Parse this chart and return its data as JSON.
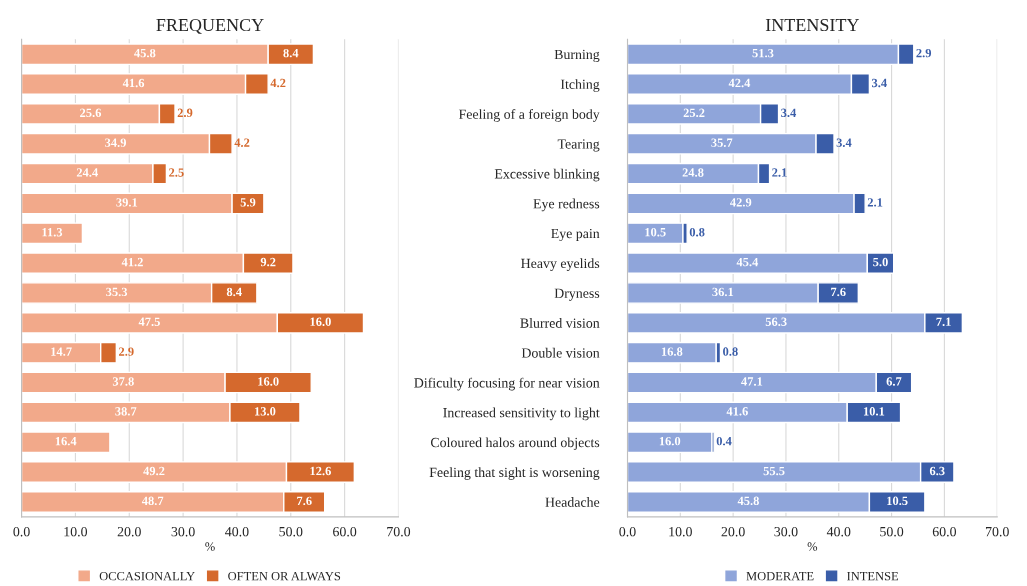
{
  "chart_data": [
    {
      "type": "bar",
      "orientation": "horizontal",
      "stacked": true,
      "title": "FREQUENCY",
      "xlabel": "%",
      "xlim": [
        0,
        70
      ],
      "xticks": [
        {
          "value": 0,
          "label": "0.0"
        },
        {
          "value": 10,
          "label": "10.0"
        },
        {
          "value": 20,
          "label": "20.0"
        },
        {
          "value": 30,
          "label": "30.0"
        },
        {
          "value": 40,
          "label": "40.0"
        },
        {
          "value": 50,
          "label": "50.0"
        },
        {
          "value": 60,
          "label": "60.0"
        },
        {
          "value": 70,
          "label": "70.0"
        }
      ],
      "categories": [
        null,
        null,
        null,
        null,
        null,
        null,
        null,
        null,
        null,
        null,
        null,
        null,
        null,
        null,
        null,
        null
      ],
      "series": [
        {
          "name": "OCCASIONALLY",
          "color": "#f2a98a",
          "values": [
            45.8,
            41.6,
            25.6,
            34.9,
            24.4,
            39.1,
            11.3,
            41.2,
            35.3,
            47.5,
            14.7,
            37.8,
            38.7,
            16.4,
            49.2,
            48.7
          ],
          "value_labels": [
            "45.8",
            "41.6",
            "25.6",
            "34.9",
            "24.4",
            "39.1",
            "11.3",
            "41.2",
            "35.3",
            "47.5",
            "14.7",
            "37.8",
            "38.7",
            "16.4",
            "49.2",
            "48.7"
          ]
        },
        {
          "name": "OFTEN OR ALWAYS",
          "color": "#d5692d",
          "values": [
            8.4,
            4.2,
            2.9,
            4.2,
            2.5,
            5.9,
            null,
            9.2,
            8.4,
            16.0,
            2.9,
            16.0,
            13.0,
            null,
            12.6,
            7.6
          ],
          "value_labels": [
            "8.4",
            "4.2",
            "2.9",
            "4.2",
            "2.5",
            "5.9",
            null,
            "9.2",
            "8.4",
            "16.0",
            "2.9",
            "16.0",
            "13.0",
            null,
            "12.6",
            "7.6"
          ]
        }
      ],
      "grid": "x",
      "legend": "bottom",
      "tick_labels": "x"
    },
    {
      "type": "bar",
      "orientation": "horizontal",
      "stacked": true,
      "title": "INTENSITY",
      "xlabel": "%",
      "xlim": [
        0,
        70
      ],
      "xticks": [
        {
          "value": 0,
          "label": "0.0"
        },
        {
          "value": 10,
          "label": "10.0"
        },
        {
          "value": 20,
          "label": "20.0"
        },
        {
          "value": 30,
          "label": "30.0"
        },
        {
          "value": 40,
          "label": "40.0"
        },
        {
          "value": 50,
          "label": "50.0"
        },
        {
          "value": 60,
          "label": "60.0"
        },
        {
          "value": 70,
          "label": "70.0"
        }
      ],
      "categories": [
        "Burning",
        "Itching",
        "Feeling of a foreign body",
        "Tearing",
        "Excessive blinking",
        "Eye redness",
        "Eye pain",
        "Heavy eyelids",
        "Dryness",
        "Blurred vision",
        "Double vision",
        "Dificulty focusing for near vision",
        "Increased sensitivity to light",
        "Coloured halos around objects",
        "Feeling that sight is worsening",
        "Headache"
      ],
      "series": [
        {
          "name": "MODERATE",
          "color": "#8fa5da",
          "values": [
            51.3,
            42.4,
            25.2,
            35.7,
            24.8,
            42.9,
            10.5,
            45.4,
            36.1,
            56.3,
            16.8,
            47.1,
            41.6,
            16.0,
            55.5,
            45.8
          ],
          "value_labels": [
            "51.3",
            "42.4",
            "25.2",
            "35.7",
            "24.8",
            "42.9",
            "10.5",
            "45.4",
            "36.1",
            "56.3",
            "16.8",
            "47.1",
            "41.6",
            "16.0",
            "55.5",
            "45.8"
          ]
        },
        {
          "name": "INTENSE",
          "color": "#3a5da8",
          "values": [
            2.9,
            3.4,
            3.4,
            3.4,
            2.1,
            2.1,
            0.8,
            5.0,
            7.6,
            7.1,
            0.8,
            6.7,
            10.1,
            0.4,
            6.3,
            10.5
          ],
          "value_labels": [
            "2.9",
            "3.4",
            "3.4",
            "3.4",
            "2.1",
            "2.1",
            "0.8",
            "5.0",
            "7.6",
            "7.1",
            "0.8",
            "6.7",
            "10.1",
            "0.4",
            "6.3",
            "10.5"
          ]
        }
      ],
      "grid": "x",
      "legend": "bottom"
    }
  ]
}
